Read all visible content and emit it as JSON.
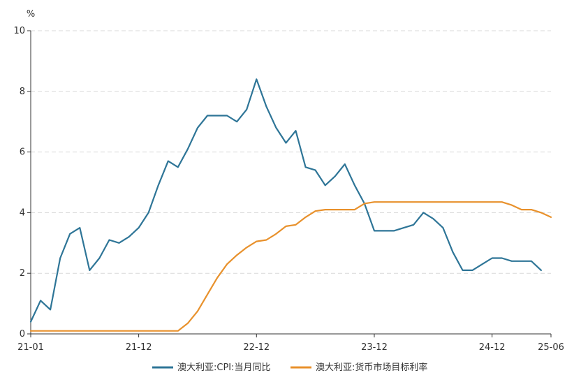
{
  "chart_data": {
    "type": "line",
    "y_unit": "%",
    "ylim": [
      0,
      10
    ],
    "y_ticks": [
      "0",
      "2",
      "4",
      "6",
      "8",
      "10"
    ],
    "x_range": [
      "2021-01",
      "2025-06"
    ],
    "x_ticks": [
      "21-01",
      "21-12",
      "22-12",
      "23-12",
      "24-12",
      "25-06"
    ],
    "grid": "horizontal dashed",
    "legend_position": "bottom",
    "series": [
      {
        "name": "澳大利亚:CPI:当月同比",
        "color": "#2e7597",
        "x": [
          "2021-01",
          "2021-02",
          "2021-03",
          "2021-04",
          "2021-05",
          "2021-06",
          "2021-07",
          "2021-08",
          "2021-09",
          "2021-10",
          "2021-11",
          "2021-12",
          "2022-01",
          "2022-02",
          "2022-03",
          "2022-04",
          "2022-05",
          "2022-06",
          "2022-07",
          "2022-08",
          "2022-09",
          "2022-10",
          "2022-11",
          "2022-12",
          "2023-01",
          "2023-02",
          "2023-03",
          "2023-04",
          "2023-05",
          "2023-06",
          "2023-07",
          "2023-08",
          "2023-09",
          "2023-10",
          "2023-11",
          "2023-12",
          "2024-01",
          "2024-02",
          "2024-03",
          "2024-04",
          "2024-05",
          "2024-06",
          "2024-07",
          "2024-08",
          "2024-09",
          "2024-10",
          "2024-11",
          "2024-12",
          "2025-01",
          "2025-02",
          "2025-03",
          "2025-04",
          "2025-05"
        ],
        "values": [
          0.4,
          1.1,
          0.8,
          2.5,
          3.3,
          3.5,
          2.1,
          2.5,
          3.1,
          3.0,
          3.2,
          3.5,
          4.0,
          4.9,
          5.7,
          5.5,
          6.1,
          6.8,
          7.2,
          7.2,
          7.2,
          7.0,
          7.4,
          8.4,
          7.5,
          6.8,
          6.3,
          6.7,
          5.5,
          5.4,
          4.9,
          5.2,
          5.6,
          4.9,
          4.3,
          3.4,
          3.4,
          3.4,
          3.5,
          3.6,
          4.0,
          3.8,
          3.5,
          2.7,
          2.1,
          2.1,
          2.3,
          2.5,
          2.5,
          2.4,
          2.4,
          2.4,
          2.1
        ]
      },
      {
        "name": "澳大利亚:货币市场目标利率",
        "color": "#e8912c",
        "x": [
          "2021-01",
          "2021-02",
          "2021-03",
          "2021-04",
          "2021-05",
          "2021-06",
          "2021-07",
          "2021-08",
          "2021-09",
          "2021-10",
          "2021-11",
          "2021-12",
          "2022-01",
          "2022-02",
          "2022-03",
          "2022-04",
          "2022-05",
          "2022-06",
          "2022-07",
          "2022-08",
          "2022-09",
          "2022-10",
          "2022-11",
          "2022-12",
          "2023-01",
          "2023-02",
          "2023-03",
          "2023-04",
          "2023-05",
          "2023-06",
          "2023-07",
          "2023-08",
          "2023-09",
          "2023-10",
          "2023-11",
          "2023-12",
          "2024-01",
          "2024-02",
          "2024-03",
          "2024-04",
          "2024-05",
          "2024-06",
          "2024-07",
          "2024-08",
          "2024-09",
          "2024-10",
          "2024-11",
          "2024-12",
          "2025-01",
          "2025-02",
          "2025-03",
          "2025-04",
          "2025-05",
          "2025-06"
        ],
        "values": [
          0.1,
          0.1,
          0.1,
          0.1,
          0.1,
          0.1,
          0.1,
          0.1,
          0.1,
          0.1,
          0.1,
          0.1,
          0.1,
          0.1,
          0.1,
          0.1,
          0.35,
          0.75,
          1.3,
          1.85,
          2.3,
          2.6,
          2.85,
          3.05,
          3.1,
          3.3,
          3.55,
          3.6,
          3.85,
          4.05,
          4.1,
          4.1,
          4.1,
          4.1,
          4.3,
          4.35,
          4.35,
          4.35,
          4.35,
          4.35,
          4.35,
          4.35,
          4.35,
          4.35,
          4.35,
          4.35,
          4.35,
          4.35,
          4.35,
          4.25,
          4.1,
          4.1,
          4.0,
          3.85
        ]
      }
    ]
  }
}
